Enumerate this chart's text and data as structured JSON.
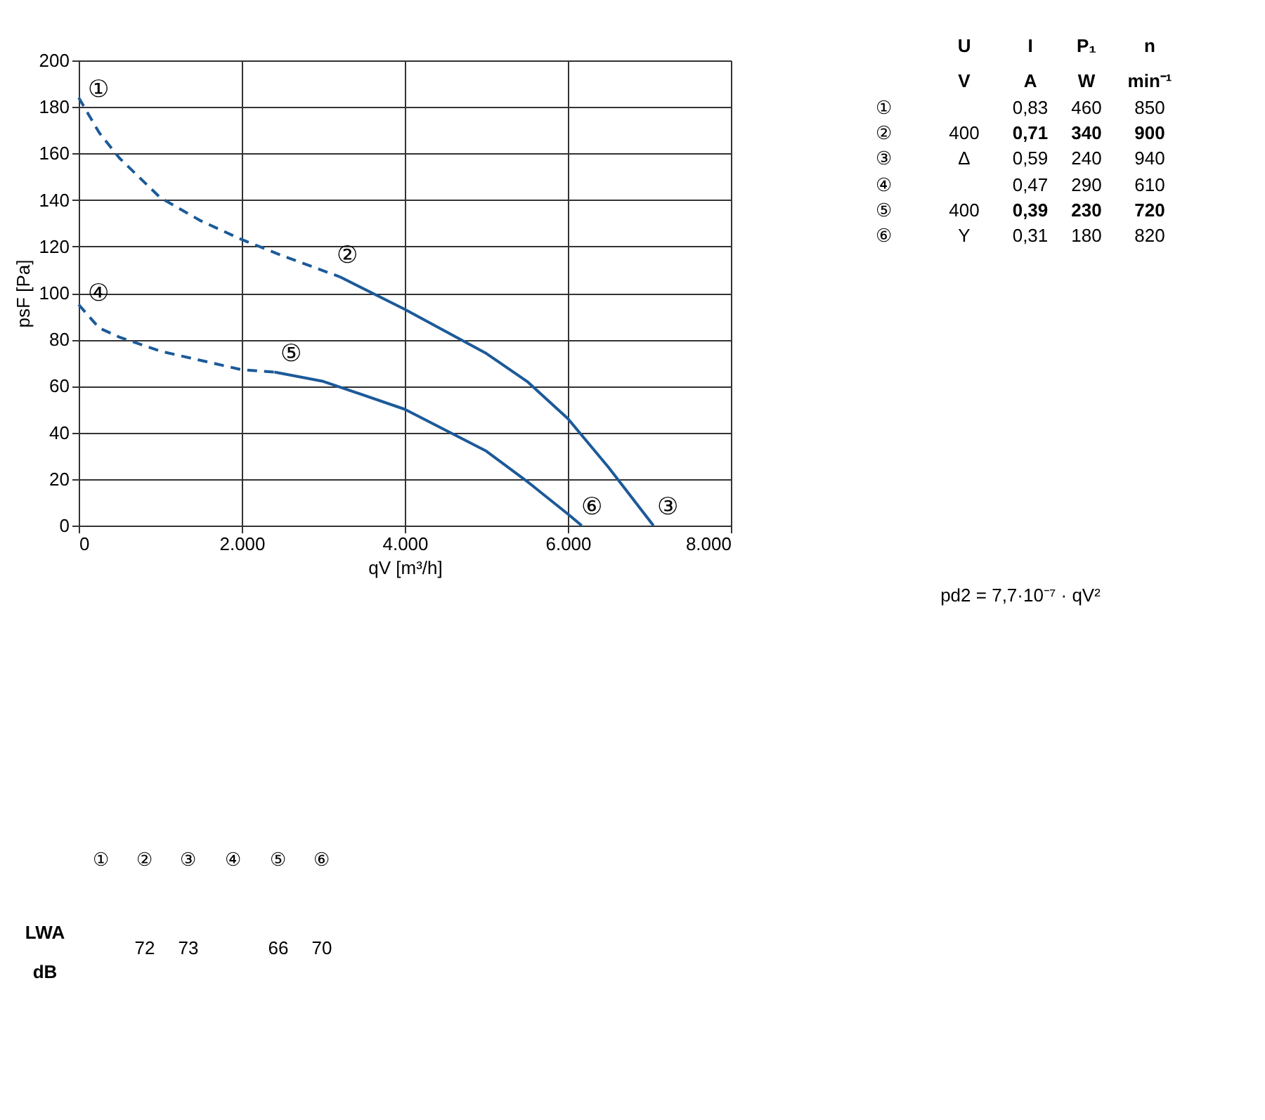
{
  "chart_data": {
    "type": "line",
    "xlabel": "qV [m³/h]",
    "ylabel": "psF [Pa]",
    "xlim": [
      0,
      8000
    ],
    "xticks": [
      0,
      {
        "value": 2000,
        "label": "2.000"
      },
      {
        "value": 4000,
        "label": "4.000"
      },
      {
        "value": 6000,
        "label": "6.000"
      },
      {
        "value": 8000,
        "label": "8.000"
      }
    ],
    "ylim": [
      0,
      200
    ],
    "yticks": [
      0,
      20,
      40,
      60,
      80,
      100,
      120,
      140,
      160,
      180,
      200
    ],
    "grid": true,
    "marker": "none",
    "series": [
      {
        "color": "#1c5a99",
        "line_style": "dashed",
        "x": [
          0,
          250,
          500,
          1000,
          1500,
          2000,
          2500,
          3200
        ],
        "values": [
          184,
          169,
          158,
          141,
          131,
          123,
          116,
          107
        ]
      },
      {
        "color": "#1c5a99",
        "line_style": "solid",
        "x": [
          3200,
          4000,
          5000,
          5500,
          6000,
          6500,
          7050
        ],
        "values": [
          107,
          93,
          74,
          62,
          46,
          25,
          0
        ]
      },
      {
        "color": "#1c5a99",
        "line_style": "dashed",
        "x": [
          0,
          250,
          500,
          1000,
          1500,
          2000,
          2400
        ],
        "values": [
          95,
          85,
          81,
          75,
          71,
          67,
          66
        ]
      },
      {
        "color": "#1c5a99",
        "line_style": "solid",
        "x": [
          2400,
          3000,
          4000,
          5000,
          5500,
          6000,
          6170
        ],
        "values": [
          66,
          62,
          50,
          32,
          19,
          5,
          0
        ]
      }
    ],
    "annotations": [
      "①",
      "②",
      "③",
      "④",
      "⑤",
      "⑥",
      "U",
      "I",
      "P₁",
      "n",
      "V",
      "A",
      "W",
      "min⁻¹",
      "①",
      "0,83",
      "460",
      "850",
      "②",
      "400",
      "0,71",
      "340",
      "900",
      "③",
      "Δ",
      "0,59",
      "240",
      "940",
      "④",
      "0,47",
      "290",
      "610",
      "⑤",
      "400",
      "0,39",
      "230",
      "720",
      "⑥",
      "Y",
      "0,31",
      "180",
      "820",
      "pd2 = 7,7·10⁻⁷ · qV²",
      "①",
      "②",
      "③",
      "④",
      "⑤",
      "⑥",
      "LWA",
      "dB",
      "72",
      "73",
      "66",
      "70"
    ]
  }
}
